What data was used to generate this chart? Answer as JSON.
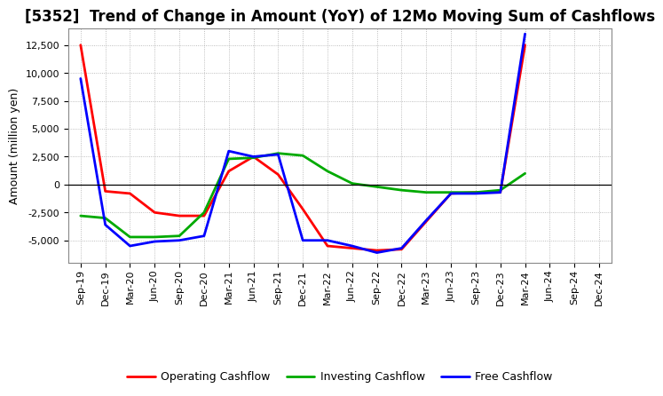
{
  "title": "[5352]  Trend of Change in Amount (YoY) of 12Mo Moving Sum of Cashflows",
  "ylabel": "Amount (million yen)",
  "x_labels": [
    "Sep-19",
    "Dec-19",
    "Mar-20",
    "Jun-20",
    "Sep-20",
    "Dec-20",
    "Mar-21",
    "Jun-21",
    "Sep-21",
    "Dec-21",
    "Mar-22",
    "Jun-22",
    "Sep-22",
    "Dec-22",
    "Mar-23",
    "Jun-23",
    "Sep-23",
    "Dec-23",
    "Mar-24",
    "Jun-24",
    "Sep-24",
    "Dec-24"
  ],
  "operating": [
    12500,
    -600,
    -800,
    -2500,
    -2800,
    -2800,
    1200,
    2500,
    900,
    -2200,
    -5500,
    -5700,
    -5900,
    -5800,
    -3300,
    -800,
    -700,
    -700,
    12500,
    null,
    null,
    null
  ],
  "investing": [
    -2800,
    -3000,
    -4700,
    -4700,
    -4600,
    -2500,
    2300,
    2400,
    2800,
    2600,
    1200,
    100,
    -200,
    -500,
    -700,
    -700,
    -700,
    -500,
    1000,
    null,
    null,
    null
  ],
  "free": [
    9500,
    -3600,
    -5500,
    -5100,
    -5000,
    -4600,
    3000,
    2500,
    2700,
    -5000,
    -5000,
    -5500,
    -6100,
    -5700,
    -3200,
    -800,
    -800,
    -700,
    13500,
    null,
    null,
    null
  ],
  "operating_color": "#ff0000",
  "investing_color": "#00aa00",
  "free_color": "#0000ff",
  "ylim": [
    -7000,
    14000
  ],
  "yticks": [
    -5000,
    -2500,
    0,
    2500,
    5000,
    7500,
    10000,
    12500
  ],
  "background_color": "#ffffff",
  "grid_color": "#aaaaaa",
  "title_fontsize": 12,
  "label_fontsize": 9,
  "tick_fontsize": 8,
  "linewidth": 2.0
}
